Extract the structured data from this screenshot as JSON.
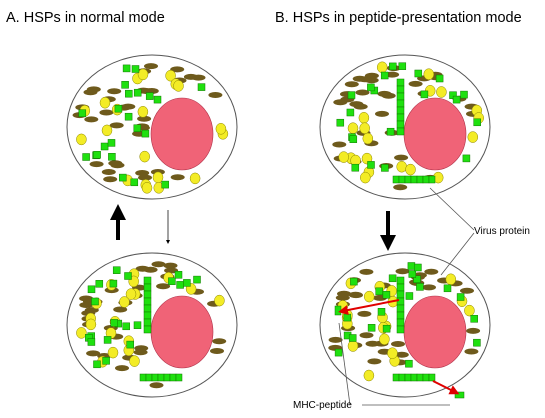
{
  "panels": [
    {
      "id": "a",
      "title": "A. HSPs in normal mode"
    },
    {
      "id": "b",
      "title": "B.  HSPs in peptide-presentation mode"
    }
  ],
  "callouts": {
    "virus_protein": "Virus protein",
    "mhc_peptide": "MHC-peptide"
  },
  "colors": {
    "nucleus": "#f06377",
    "organelle": "#6e5a1c",
    "hsp": "#1fe00f",
    "granule": "#f3ec26",
    "cell_outline": "#555555",
    "mhc_arrow": "#e00000",
    "flow_arrow": "#000000"
  },
  "cells": [
    {
      "name": "cell-a-top",
      "peptide_stack": false,
      "mhc_presentation": false
    },
    {
      "name": "cell-a-bottom",
      "peptide_stack": true,
      "mhc_presentation": false
    },
    {
      "name": "cell-b-top",
      "peptide_stack": true,
      "mhc_presentation": false
    },
    {
      "name": "cell-b-bottom",
      "peptide_stack": true,
      "mhc_presentation": true
    }
  ]
}
